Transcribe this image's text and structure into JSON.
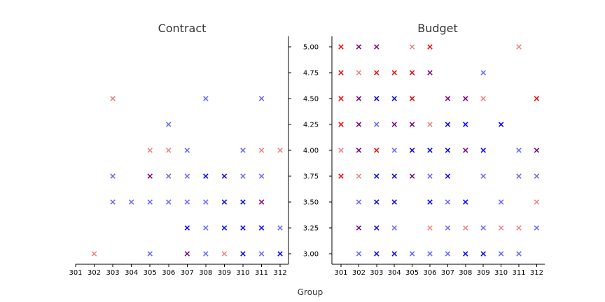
{
  "chart_data": {
    "type": "scatter",
    "marker": "x",
    "xlabel": "Group",
    "x_categories": [
      "301",
      "302",
      "303",
      "304",
      "305",
      "306",
      "307",
      "308",
      "309",
      "310",
      "311",
      "312"
    ],
    "ylim": [
      3.0,
      5.0
    ],
    "y_ticks": [
      "3.00",
      "3.25",
      "3.50",
      "3.75",
      "4.00",
      "4.25",
      "4.50",
      "4.75",
      "5.00"
    ],
    "grid": false,
    "legend": "none",
    "colors": {
      "red": "#ff0000",
      "light_red": "#f08080",
      "purple": "#800080",
      "blue": "#0000ff",
      "light_blue": "#6666ff"
    },
    "panels": [
      {
        "title": "Contract",
        "y_axis_side": "right",
        "points": [
          {
            "x": "302",
            "y": 3.0,
            "c": "light_red"
          },
          {
            "x": "303",
            "y": 4.5,
            "c": "light_red"
          },
          {
            "x": "303",
            "y": 3.75,
            "c": "light_blue"
          },
          {
            "x": "303",
            "y": 3.5,
            "c": "light_blue"
          },
          {
            "x": "304",
            "y": 3.5,
            "c": "light_blue"
          },
          {
            "x": "305",
            "y": 4.0,
            "c": "light_red"
          },
          {
            "x": "305",
            "y": 3.75,
            "c": "purple"
          },
          {
            "x": "305",
            "y": 3.5,
            "c": "light_blue"
          },
          {
            "x": "305",
            "y": 3.0,
            "c": "light_blue"
          },
          {
            "x": "306",
            "y": 4.25,
            "c": "light_blue"
          },
          {
            "x": "306",
            "y": 4.0,
            "c": "light_red"
          },
          {
            "x": "306",
            "y": 3.75,
            "c": "light_blue"
          },
          {
            "x": "306",
            "y": 3.5,
            "c": "light_blue"
          },
          {
            "x": "307",
            "y": 4.0,
            "c": "light_blue"
          },
          {
            "x": "307",
            "y": 3.75,
            "c": "light_blue"
          },
          {
            "x": "307",
            "y": 3.5,
            "c": "light_blue"
          },
          {
            "x": "307",
            "y": 3.25,
            "c": "blue"
          },
          {
            "x": "307",
            "y": 3.0,
            "c": "purple"
          },
          {
            "x": "308",
            "y": 4.5,
            "c": "light_blue"
          },
          {
            "x": "308",
            "y": 3.75,
            "c": "blue"
          },
          {
            "x": "308",
            "y": 3.5,
            "c": "light_blue"
          },
          {
            "x": "308",
            "y": 3.25,
            "c": "light_blue"
          },
          {
            "x": "308",
            "y": 3.0,
            "c": "light_blue"
          },
          {
            "x": "309",
            "y": 3.75,
            "c": "blue"
          },
          {
            "x": "309",
            "y": 3.5,
            "c": "blue"
          },
          {
            "x": "309",
            "y": 3.25,
            "c": "blue"
          },
          {
            "x": "309",
            "y": 3.0,
            "c": "light_red"
          },
          {
            "x": "310",
            "y": 4.0,
            "c": "light_blue"
          },
          {
            "x": "310",
            "y": 3.75,
            "c": "light_blue"
          },
          {
            "x": "310",
            "y": 3.5,
            "c": "blue"
          },
          {
            "x": "310",
            "y": 3.25,
            "c": "blue"
          },
          {
            "x": "310",
            "y": 3.0,
            "c": "blue"
          },
          {
            "x": "311",
            "y": 4.5,
            "c": "light_blue"
          },
          {
            "x": "311",
            "y": 4.0,
            "c": "light_red"
          },
          {
            "x": "311",
            "y": 3.75,
            "c": "light_blue"
          },
          {
            "x": "311",
            "y": 3.5,
            "c": "purple"
          },
          {
            "x": "311",
            "y": 3.25,
            "c": "blue"
          },
          {
            "x": "311",
            "y": 3.0,
            "c": "light_blue"
          },
          {
            "x": "312",
            "y": 4.0,
            "c": "light_red"
          },
          {
            "x": "312",
            "y": 3.25,
            "c": "light_blue"
          },
          {
            "x": "312",
            "y": 3.0,
            "c": "blue"
          }
        ]
      },
      {
        "title": "Budget",
        "y_axis_side": "left",
        "points": [
          {
            "x": "301",
            "y": 5.0,
            "c": "red"
          },
          {
            "x": "301",
            "y": 4.75,
            "c": "red"
          },
          {
            "x": "301",
            "y": 4.5,
            "c": "red"
          },
          {
            "x": "301",
            "y": 4.25,
            "c": "red"
          },
          {
            "x": "301",
            "y": 4.0,
            "c": "light_red"
          },
          {
            "x": "301",
            "y": 3.75,
            "c": "red"
          },
          {
            "x": "302",
            "y": 5.0,
            "c": "purple"
          },
          {
            "x": "302",
            "y": 4.75,
            "c": "light_red"
          },
          {
            "x": "302",
            "y": 4.5,
            "c": "purple"
          },
          {
            "x": "302",
            "y": 4.25,
            "c": "purple"
          },
          {
            "x": "302",
            "y": 4.0,
            "c": "purple"
          },
          {
            "x": "302",
            "y": 3.75,
            "c": "light_red"
          },
          {
            "x": "302",
            "y": 3.5,
            "c": "light_blue"
          },
          {
            "x": "302",
            "y": 3.25,
            "c": "purple"
          },
          {
            "x": "302",
            "y": 3.0,
            "c": "light_blue"
          },
          {
            "x": "303",
            "y": 5.0,
            "c": "purple"
          },
          {
            "x": "303",
            "y": 4.75,
            "c": "red"
          },
          {
            "x": "303",
            "y": 4.5,
            "c": "blue"
          },
          {
            "x": "303",
            "y": 4.25,
            "c": "light_blue"
          },
          {
            "x": "303",
            "y": 4.0,
            "c": "red"
          },
          {
            "x": "303",
            "y": 3.75,
            "c": "blue"
          },
          {
            "x": "303",
            "y": 3.5,
            "c": "blue"
          },
          {
            "x": "303",
            "y": 3.25,
            "c": "blue"
          },
          {
            "x": "303",
            "y": 3.0,
            "c": "blue"
          },
          {
            "x": "304",
            "y": 4.75,
            "c": "red"
          },
          {
            "x": "304",
            "y": 4.5,
            "c": "blue"
          },
          {
            "x": "304",
            "y": 4.25,
            "c": "purple"
          },
          {
            "x": "304",
            "y": 4.0,
            "c": "light_blue"
          },
          {
            "x": "304",
            "y": 3.75,
            "c": "blue"
          },
          {
            "x": "304",
            "y": 3.5,
            "c": "blue"
          },
          {
            "x": "304",
            "y": 3.25,
            "c": "light_blue"
          },
          {
            "x": "304",
            "y": 3.0,
            "c": "blue"
          },
          {
            "x": "305",
            "y": 5.0,
            "c": "light_red"
          },
          {
            "x": "305",
            "y": 4.75,
            "c": "red"
          },
          {
            "x": "305",
            "y": 4.5,
            "c": "red"
          },
          {
            "x": "305",
            "y": 4.25,
            "c": "purple"
          },
          {
            "x": "305",
            "y": 4.0,
            "c": "blue"
          },
          {
            "x": "305",
            "y": 3.75,
            "c": "purple"
          },
          {
            "x": "305",
            "y": 3.0,
            "c": "light_blue"
          },
          {
            "x": "306",
            "y": 5.0,
            "c": "red"
          },
          {
            "x": "306",
            "y": 4.75,
            "c": "purple"
          },
          {
            "x": "306",
            "y": 4.25,
            "c": "light_red"
          },
          {
            "x": "306",
            "y": 4.0,
            "c": "blue"
          },
          {
            "x": "306",
            "y": 3.75,
            "c": "light_blue"
          },
          {
            "x": "306",
            "y": 3.5,
            "c": "blue"
          },
          {
            "x": "306",
            "y": 3.25,
            "c": "light_red"
          },
          {
            "x": "306",
            "y": 3.0,
            "c": "light_blue"
          },
          {
            "x": "307",
            "y": 4.5,
            "c": "purple"
          },
          {
            "x": "307",
            "y": 4.25,
            "c": "blue"
          },
          {
            "x": "307",
            "y": 4.0,
            "c": "blue"
          },
          {
            "x": "307",
            "y": 3.75,
            "c": "blue"
          },
          {
            "x": "307",
            "y": 3.5,
            "c": "light_blue"
          },
          {
            "x": "307",
            "y": 3.25,
            "c": "light_blue"
          },
          {
            "x": "307",
            "y": 3.0,
            "c": "light_blue"
          },
          {
            "x": "308",
            "y": 4.5,
            "c": "purple"
          },
          {
            "x": "308",
            "y": 4.25,
            "c": "blue"
          },
          {
            "x": "308",
            "y": 4.0,
            "c": "purple"
          },
          {
            "x": "308",
            "y": 3.5,
            "c": "blue"
          },
          {
            "x": "308",
            "y": 3.25,
            "c": "light_red"
          },
          {
            "x": "308",
            "y": 3.0,
            "c": "blue"
          },
          {
            "x": "309",
            "y": 4.75,
            "c": "light_blue"
          },
          {
            "x": "309",
            "y": 4.5,
            "c": "light_red"
          },
          {
            "x": "309",
            "y": 4.0,
            "c": "blue"
          },
          {
            "x": "309",
            "y": 3.75,
            "c": "light_blue"
          },
          {
            "x": "309",
            "y": 3.25,
            "c": "light_blue"
          },
          {
            "x": "309",
            "y": 3.0,
            "c": "blue"
          },
          {
            "x": "310",
            "y": 4.25,
            "c": "blue"
          },
          {
            "x": "310",
            "y": 3.5,
            "c": "light_blue"
          },
          {
            "x": "310",
            "y": 3.25,
            "c": "light_red"
          },
          {
            "x": "310",
            "y": 3.0,
            "c": "light_blue"
          },
          {
            "x": "311",
            "y": 5.0,
            "c": "light_red"
          },
          {
            "x": "311",
            "y": 4.0,
            "c": "light_blue"
          },
          {
            "x": "311",
            "y": 3.75,
            "c": "light_blue"
          },
          {
            "x": "311",
            "y": 3.25,
            "c": "light_red"
          },
          {
            "x": "311",
            "y": 3.0,
            "c": "light_blue"
          },
          {
            "x": "312",
            "y": 4.5,
            "c": "red"
          },
          {
            "x": "312",
            "y": 4.0,
            "c": "purple"
          },
          {
            "x": "312",
            "y": 3.75,
            "c": "light_blue"
          },
          {
            "x": "312",
            "y": 3.5,
            "c": "light_red"
          },
          {
            "x": "312",
            "y": 3.25,
            "c": "light_blue"
          }
        ]
      }
    ]
  }
}
